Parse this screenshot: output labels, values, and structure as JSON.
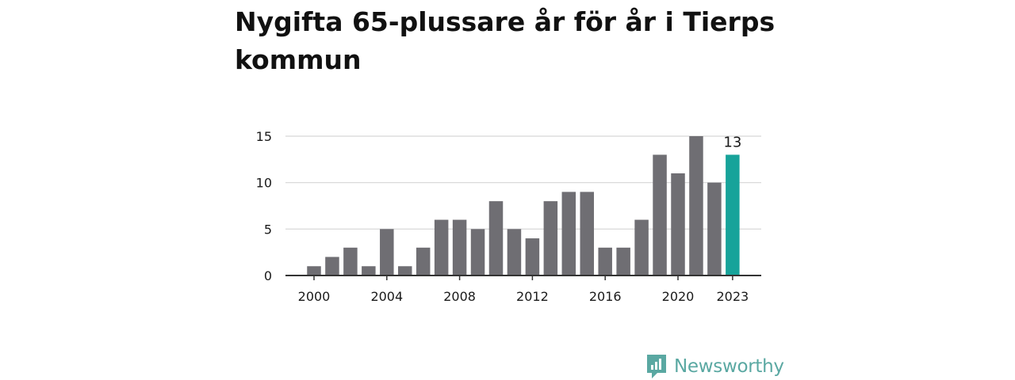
{
  "title": "Nygifta 65-plussare år för år i Tierps kommun",
  "brand": {
    "name": "Newsworthy",
    "icon": "newsworthy-logo-icon",
    "color": "#5aa8a2"
  },
  "colors": {
    "bar": "#6f6e73",
    "highlight": "#17a39a",
    "grid": "#d6d6d6",
    "axis": "#333333"
  },
  "chart_data": {
    "type": "bar",
    "title": "Nygifta 65-plussare år för år i Tierps kommun",
    "xlabel": "",
    "ylabel": "",
    "categories": [
      "2000",
      "2001",
      "2002",
      "2003",
      "2004",
      "2005",
      "2006",
      "2007",
      "2008",
      "2009",
      "2010",
      "2011",
      "2012",
      "2013",
      "2014",
      "2015",
      "2016",
      "2017",
      "2018",
      "2019",
      "2020",
      "2021",
      "2022",
      "2023"
    ],
    "values": [
      1,
      2,
      3,
      1,
      5,
      1,
      3,
      6,
      6,
      5,
      8,
      5,
      4,
      8,
      9,
      9,
      3,
      3,
      6,
      13,
      11,
      15,
      10,
      13
    ],
    "ylim": [
      0,
      15
    ],
    "yticks": [
      0,
      5,
      10,
      15
    ],
    "xtick_labels": [
      "2000",
      "2004",
      "2008",
      "2012",
      "2016",
      "2020",
      "2023"
    ],
    "highlight": {
      "category": "2023",
      "label": "13"
    },
    "grid": true,
    "legend": "none"
  }
}
